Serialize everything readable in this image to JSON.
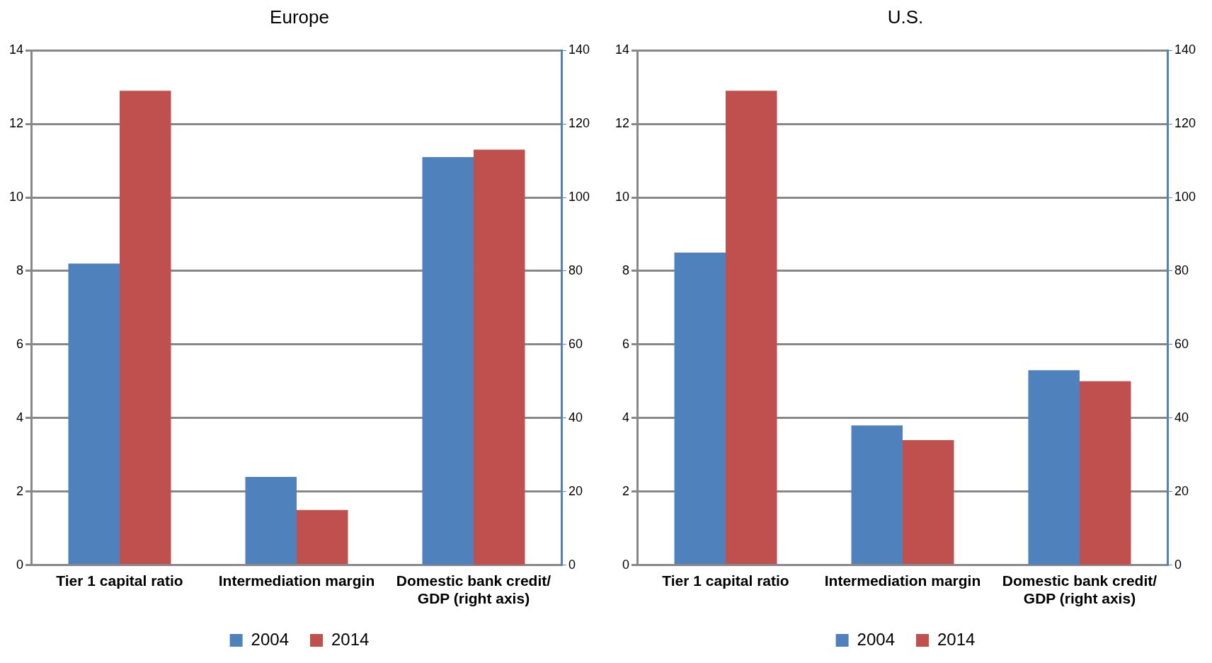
{
  "chart_data": [
    {
      "type": "bar",
      "title": "Europe",
      "categories": [
        "Tier 1 capital ratio",
        "Intermediation margin",
        "Domestic bank credit/ GDP (right axis)"
      ],
      "series": [
        {
          "name": "2004",
          "color": "#4f81bd",
          "values": [
            8.2,
            2.4,
            null
          ]
        },
        {
          "name": "2014",
          "color": "#c0504d",
          "values": [
            12.9,
            1.5,
            null
          ]
        },
        {
          "color": "#4f81bd",
          "values": [
            null,
            null,
            111
          ],
          "axis": "y2"
        },
        {
          "color": "#c0504d",
          "values": [
            null,
            null,
            113
          ],
          "axis": "y2"
        }
      ],
      "ylim": [
        0,
        14
      ],
      "yticks": [
        0,
        2,
        4,
        6,
        8,
        10,
        12,
        14
      ],
      "y2lim": [
        0,
        140
      ],
      "y2ticks": [
        0,
        20,
        40,
        60,
        80,
        100,
        120,
        140
      ],
      "grid": "y",
      "legend": "bottom"
    },
    {
      "type": "bar",
      "title": "U.S.",
      "categories": [
        "Tier 1 capital ratio",
        "Intermediation margin",
        "Domestic bank credit/ GDP (right axis)"
      ],
      "series": [
        {
          "name": "2004",
          "color": "#4f81bd",
          "values": [
            8.5,
            3.8,
            null
          ]
        },
        {
          "name": "2014",
          "color": "#c0504d",
          "values": [
            12.9,
            3.4,
            null
          ]
        },
        {
          "color": "#4f81bd",
          "values": [
            null,
            null,
            53
          ],
          "axis": "y2"
        },
        {
          "color": "#c0504d",
          "values": [
            null,
            null,
            50
          ],
          "axis": "y2"
        }
      ],
      "ylim": [
        0,
        14
      ],
      "yticks": [
        0,
        2,
        4,
        6,
        8,
        10,
        12,
        14
      ],
      "y2lim": [
        0,
        140
      ],
      "y2ticks": [
        0,
        20,
        40,
        60,
        80,
        100,
        120,
        140
      ],
      "grid": "y",
      "legend": "bottom"
    }
  ]
}
